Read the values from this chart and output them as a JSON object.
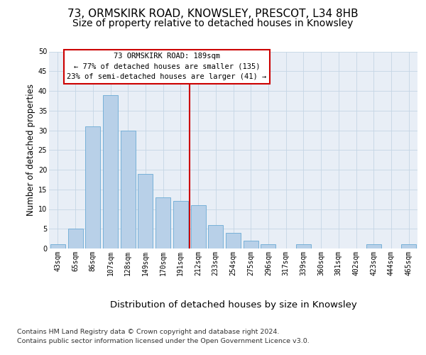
{
  "title1": "73, ORMSKIRK ROAD, KNOWSLEY, PRESCOT, L34 8HB",
  "title2": "Size of property relative to detached houses in Knowsley",
  "xlabel": "Distribution of detached houses by size in Knowsley",
  "ylabel": "Number of detached properties",
  "bar_labels": [
    "43sqm",
    "65sqm",
    "86sqm",
    "107sqm",
    "128sqm",
    "149sqm",
    "170sqm",
    "191sqm",
    "212sqm",
    "233sqm",
    "254sqm",
    "275sqm",
    "296sqm",
    "317sqm",
    "339sqm",
    "360sqm",
    "381sqm",
    "402sqm",
    "423sqm",
    "444sqm",
    "465sqm"
  ],
  "bar_values": [
    1,
    5,
    31,
    39,
    30,
    19,
    13,
    12,
    11,
    6,
    4,
    2,
    1,
    0,
    1,
    0,
    0,
    0,
    1,
    0,
    1
  ],
  "bar_color": "#b8d0e8",
  "bar_edge_color": "#6aaad4",
  "vline_color": "#cc0000",
  "vline_position": 7.5,
  "annotation_title": "73 ORMSKIRK ROAD: 189sqm",
  "annotation_line1": "← 77% of detached houses are smaller (135)",
  "annotation_line2": "23% of semi-detached houses are larger (41) →",
  "annotation_box_facecolor": "#ffffff",
  "annotation_box_edgecolor": "#cc0000",
  "ylim_max": 50,
  "yticks": [
    0,
    5,
    10,
    15,
    20,
    25,
    30,
    35,
    40,
    45,
    50
  ],
  "footnote1": "Contains HM Land Registry data © Crown copyright and database right 2024.",
  "footnote2": "Contains public sector information licensed under the Open Government Licence v3.0.",
  "plot_bg_color": "#e8eef6",
  "fig_bg_color": "#ffffff",
  "title1_fontsize": 11,
  "title2_fontsize": 10,
  "xlabel_fontsize": 9.5,
  "ylabel_fontsize": 8.5,
  "tick_fontsize": 7,
  "annot_fontsize": 7.5,
  "footnote_fontsize": 6.8,
  "grid_color": "#c5d5e5"
}
